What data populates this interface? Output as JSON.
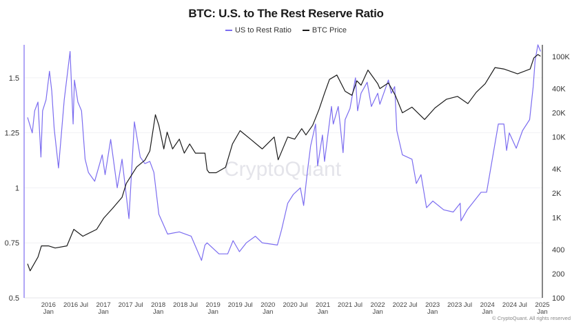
{
  "chart_data": {
    "type": "line",
    "title": "BTC: U.S. to The Rest Reserve Ratio",
    "watermark": "CryptoQuant",
    "copyright": "© CryptoQuant. All rights reserved",
    "legend_position": "top",
    "grid": true,
    "x_range": [
      "2015-07-23",
      "2025-01-01"
    ],
    "x_ticks": [
      {
        "year": "2016",
        "sub": "Jan",
        "date": "2016-01-01"
      },
      {
        "year": "2016 Jul",
        "sub": "",
        "date": "2016-07-01"
      },
      {
        "year": "2017",
        "sub": "Jan",
        "date": "2017-01-01"
      },
      {
        "year": "2017 Jul",
        "sub": "",
        "date": "2017-07-01"
      },
      {
        "year": "2018",
        "sub": "Jan",
        "date": "2018-01-01"
      },
      {
        "year": "2018 Jul",
        "sub": "",
        "date": "2018-07-01"
      },
      {
        "year": "2019",
        "sub": "Jan",
        "date": "2019-01-01"
      },
      {
        "year": "2019 Jul",
        "sub": "",
        "date": "2019-07-01"
      },
      {
        "year": "2020",
        "sub": "Jan",
        "date": "2020-01-01"
      },
      {
        "year": "2020 Jul",
        "sub": "",
        "date": "2020-07-01"
      },
      {
        "year": "2021",
        "sub": "Jan",
        "date": "2021-01-01"
      },
      {
        "year": "2021 Jul",
        "sub": "",
        "date": "2021-07-01"
      },
      {
        "year": "2022",
        "sub": "Jan",
        "date": "2022-01-01"
      },
      {
        "year": "2022 Jul",
        "sub": "",
        "date": "2022-07-01"
      },
      {
        "year": "2023",
        "sub": "Jan",
        "date": "2023-01-01"
      },
      {
        "year": "2023 Jul",
        "sub": "",
        "date": "2023-07-01"
      },
      {
        "year": "2024",
        "sub": "Jan",
        "date": "2024-01-01"
      },
      {
        "year": "2024 Jul",
        "sub": "",
        "date": "2024-07-01"
      },
      {
        "year": "2025",
        "sub": "Jan",
        "date": "2025-01-01"
      }
    ],
    "y_left": {
      "range": [
        0.5,
        1.65
      ],
      "scale": "linear",
      "ticks": [
        {
          "v": 0.5,
          "label": "0.5"
        },
        {
          "v": 0.75,
          "label": "0.75"
        },
        {
          "v": 1,
          "label": "1"
        },
        {
          "v": 1.25,
          "label": "1.25"
        },
        {
          "v": 1.5,
          "label": "1.5"
        }
      ]
    },
    "y_right": {
      "range": [
        100,
        140000
      ],
      "scale": "log",
      "ticks": [
        {
          "v": 100,
          "label": "100"
        },
        {
          "v": 200,
          "label": "200"
        },
        {
          "v": 400,
          "label": "400"
        },
        {
          "v": 1000,
          "label": "1K"
        },
        {
          "v": 2000,
          "label": "2K"
        },
        {
          "v": 4000,
          "label": "4K"
        },
        {
          "v": 10000,
          "label": "10K"
        },
        {
          "v": 20000,
          "label": "20K"
        },
        {
          "v": 40000,
          "label": "40K"
        },
        {
          "v": 100000,
          "label": "100K"
        }
      ]
    },
    "series": [
      {
        "name": "US to Rest Ratio",
        "axis": "left",
        "color": "#7b6cf0",
        "points": [
          [
            "2015-08-15",
            1.32
          ],
          [
            "2015-09-15",
            1.25
          ],
          [
            "2015-10-01",
            1.35
          ],
          [
            "2015-10-23",
            1.39
          ],
          [
            "2015-11-12",
            1.14
          ],
          [
            "2015-11-23",
            1.35
          ],
          [
            "2015-12-16",
            1.4
          ],
          [
            "2016-01-08",
            1.53
          ],
          [
            "2016-01-23",
            1.44
          ],
          [
            "2016-02-08",
            1.27
          ],
          [
            "2016-03-08",
            1.09
          ],
          [
            "2016-04-15",
            1.4
          ],
          [
            "2016-05-24",
            1.62
          ],
          [
            "2016-06-13",
            1.29
          ],
          [
            "2016-06-22",
            1.49
          ],
          [
            "2016-07-15",
            1.39
          ],
          [
            "2016-08-08",
            1.35
          ],
          [
            "2016-09-01",
            1.13
          ],
          [
            "2016-09-23",
            1.07
          ],
          [
            "2016-11-04",
            1.03
          ],
          [
            "2016-12-24",
            1.15
          ],
          [
            "2017-01-12",
            1.06
          ],
          [
            "2017-02-18",
            1.22
          ],
          [
            "2017-04-03",
            1.0
          ],
          [
            "2017-05-05",
            1.13
          ],
          [
            "2017-06-20",
            0.86
          ],
          [
            "2017-07-26",
            1.3
          ],
          [
            "2017-09-03",
            1.14
          ],
          [
            "2017-10-04",
            1.11
          ],
          [
            "2017-11-06",
            1.12
          ],
          [
            "2017-12-03",
            1.07
          ],
          [
            "2018-01-05",
            0.88
          ],
          [
            "2018-03-04",
            0.79
          ],
          [
            "2018-05-21",
            0.8
          ],
          [
            "2018-08-08",
            0.78
          ],
          [
            "2018-10-16",
            0.67
          ],
          [
            "2018-11-08",
            0.74
          ],
          [
            "2018-11-22",
            0.75
          ],
          [
            "2019-02-09",
            0.7
          ],
          [
            "2019-04-08",
            0.7
          ],
          [
            "2019-05-14",
            0.76
          ],
          [
            "2019-06-25",
            0.71
          ],
          [
            "2019-08-10",
            0.75
          ],
          [
            "2019-10-09",
            0.78
          ],
          [
            "2019-11-24",
            0.75
          ],
          [
            "2020-03-04",
            0.74
          ],
          [
            "2020-04-01",
            0.81
          ],
          [
            "2020-05-12",
            0.93
          ],
          [
            "2020-06-18",
            0.97
          ],
          [
            "2020-08-04",
            1.0
          ],
          [
            "2020-08-26",
            0.92
          ],
          [
            "2020-09-19",
            1.07
          ],
          [
            "2020-10-11",
            1.19
          ],
          [
            "2020-11-13",
            1.29
          ],
          [
            "2020-11-27",
            1.1
          ],
          [
            "2020-12-29",
            1.24
          ],
          [
            "2021-01-12",
            1.12
          ],
          [
            "2021-02-27",
            1.37
          ],
          [
            "2021-03-11",
            1.29
          ],
          [
            "2021-04-13",
            1.37
          ],
          [
            "2021-05-15",
            1.16
          ],
          [
            "2021-05-29",
            1.31
          ],
          [
            "2021-06-30",
            1.36
          ],
          [
            "2021-08-06",
            1.5
          ],
          [
            "2021-08-20",
            1.35
          ],
          [
            "2021-09-12",
            1.43
          ],
          [
            "2021-10-23",
            1.48
          ],
          [
            "2021-11-20",
            1.37
          ],
          [
            "2022-01-01",
            1.43
          ],
          [
            "2022-01-15",
            1.38
          ],
          [
            "2022-03-13",
            1.49
          ],
          [
            "2022-04-01",
            1.43
          ],
          [
            "2022-04-24",
            1.46
          ],
          [
            "2022-05-08",
            1.26
          ],
          [
            "2022-06-14",
            1.15
          ],
          [
            "2022-08-17",
            1.13
          ],
          [
            "2022-09-15",
            1.02
          ],
          [
            "2022-10-16",
            1.06
          ],
          [
            "2022-11-22",
            0.91
          ],
          [
            "2023-01-03",
            0.94
          ],
          [
            "2023-03-16",
            0.9
          ],
          [
            "2023-05-19",
            0.89
          ],
          [
            "2023-07-04",
            0.93
          ],
          [
            "2023-07-09",
            0.85
          ],
          [
            "2023-08-20",
            0.9
          ],
          [
            "2023-11-20",
            0.98
          ],
          [
            "2023-12-27",
            0.98
          ],
          [
            "2024-03-14",
            1.29
          ],
          [
            "2024-04-20",
            1.29
          ],
          [
            "2024-05-08",
            1.17
          ],
          [
            "2024-05-26",
            1.25
          ],
          [
            "2024-07-11",
            1.18
          ],
          [
            "2024-08-22",
            1.26
          ],
          [
            "2024-10-08",
            1.31
          ],
          [
            "2024-11-01",
            1.46
          ],
          [
            "2024-11-14",
            1.58
          ],
          [
            "2024-12-02",
            1.65
          ],
          [
            "2024-12-20",
            1.62
          ]
        ]
      },
      {
        "name": "BTC Price",
        "axis": "right",
        "color": "#1a1a1a",
        "points": [
          [
            "2015-08-15",
            265
          ],
          [
            "2015-09-01",
            217
          ],
          [
            "2015-10-23",
            322
          ],
          [
            "2015-11-15",
            443
          ],
          [
            "2016-01-01",
            443
          ],
          [
            "2016-02-15",
            417
          ],
          [
            "2016-05-03",
            443
          ],
          [
            "2016-06-18",
            711
          ],
          [
            "2016-08-17",
            584
          ],
          [
            "2016-11-17",
            711
          ],
          [
            "2017-01-03",
            980
          ],
          [
            "2017-03-02",
            1290
          ],
          [
            "2017-05-05",
            1780
          ],
          [
            "2017-06-02",
            2640
          ],
          [
            "2017-08-10",
            4240
          ],
          [
            "2017-10-04",
            5150
          ],
          [
            "2017-11-06",
            6700
          ],
          [
            "2017-12-13",
            18900
          ],
          [
            "2018-01-05",
            14000
          ],
          [
            "2018-02-07",
            7100
          ],
          [
            "2018-03-01",
            11500
          ],
          [
            "2018-04-06",
            7100
          ],
          [
            "2018-05-21",
            9400
          ],
          [
            "2018-06-23",
            6300
          ],
          [
            "2018-07-29",
            8200
          ],
          [
            "2018-09-05",
            6300
          ],
          [
            "2018-11-08",
            6300
          ],
          [
            "2018-11-22",
            3900
          ],
          [
            "2018-12-06",
            3600
          ],
          [
            "2019-01-21",
            3600
          ],
          [
            "2019-03-25",
            4200
          ],
          [
            "2019-05-10",
            8200
          ],
          [
            "2019-06-30",
            12000
          ],
          [
            "2019-09-07",
            9400
          ],
          [
            "2019-11-24",
            7100
          ],
          [
            "2020-02-12",
            10000
          ],
          [
            "2020-03-09",
            5200
          ],
          [
            "2020-05-12",
            10000
          ],
          [
            "2020-06-27",
            9400
          ],
          [
            "2020-08-13",
            12700
          ],
          [
            "2020-09-10",
            10600
          ],
          [
            "2020-10-25",
            14000
          ],
          [
            "2020-12-06",
            22000
          ],
          [
            "2021-01-12",
            35000
          ],
          [
            "2021-02-14",
            52000
          ],
          [
            "2021-04-04",
            59000
          ],
          [
            "2021-05-29",
            37000
          ],
          [
            "2021-07-13",
            33000
          ],
          [
            "2021-08-15",
            50000
          ],
          [
            "2021-09-12",
            44000
          ],
          [
            "2021-10-28",
            68000
          ],
          [
            "2022-01-01",
            46000
          ],
          [
            "2022-01-15",
            40000
          ],
          [
            "2022-03-13",
            47000
          ],
          [
            "2022-04-28",
            33000
          ],
          [
            "2022-06-14",
            20000
          ],
          [
            "2022-08-17",
            23500
          ],
          [
            "2022-11-09",
            16500
          ],
          [
            "2023-01-17",
            23000
          ],
          [
            "2023-04-04",
            29500
          ],
          [
            "2023-06-16",
            32000
          ],
          [
            "2023-08-24",
            26000
          ],
          [
            "2023-10-19",
            36000
          ],
          [
            "2023-12-17",
            46000
          ],
          [
            "2024-02-21",
            73000
          ],
          [
            "2024-04-20",
            70000
          ],
          [
            "2024-07-20",
            61000
          ],
          [
            "2024-10-12",
            70000
          ],
          [
            "2024-11-05",
            96000
          ],
          [
            "2024-12-02",
            106000
          ],
          [
            "2024-12-20",
            101000
          ]
        ]
      }
    ]
  }
}
